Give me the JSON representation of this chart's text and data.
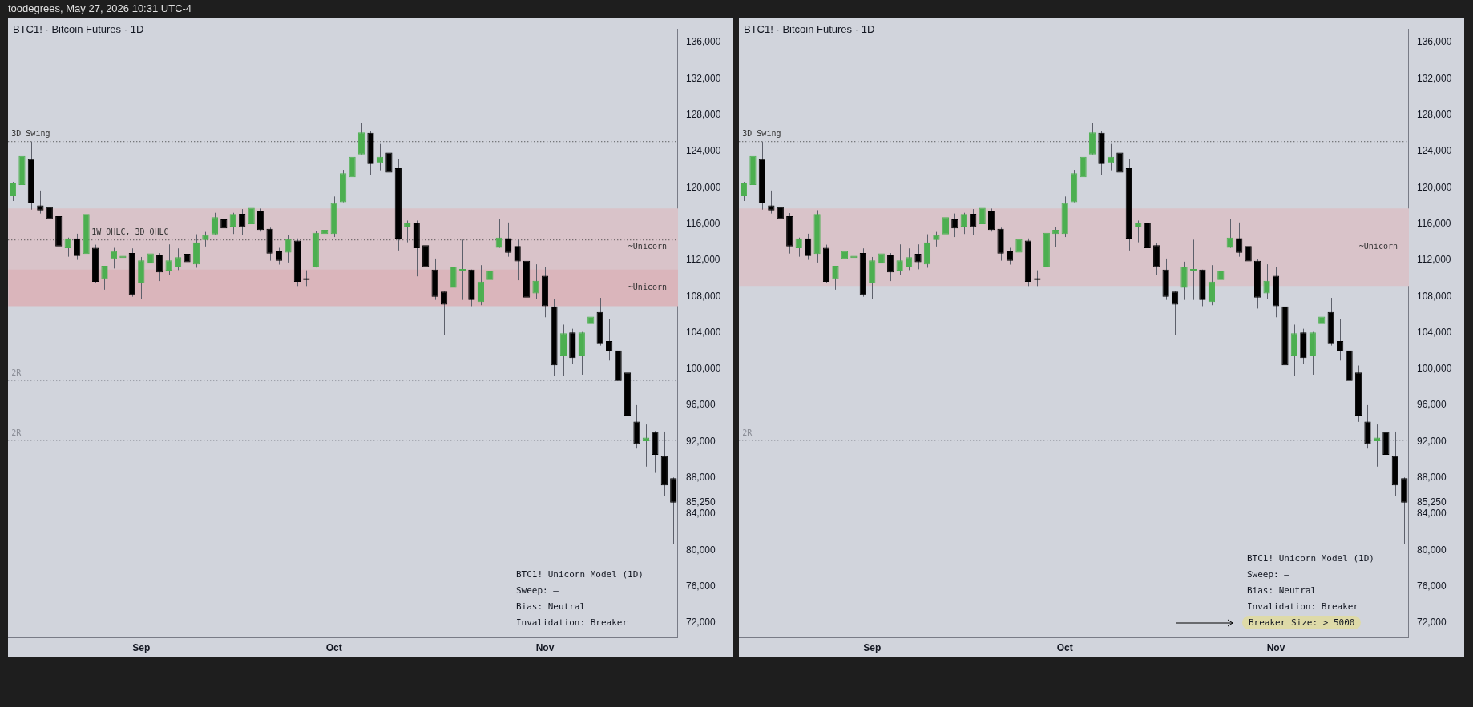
{
  "chart_data": [
    {
      "type": "candlestick",
      "title": "BTC1! · Bitcoin Futures · 1D",
      "subtitle": "toodegrees, May 27, 2026 10:31 UTC-4",
      "categories": [
        null,
        null,
        null,
        null,
        null,
        null,
        null,
        null,
        null,
        null,
        null,
        null,
        null,
        null,
        "Sep",
        null,
        null,
        null,
        null,
        null,
        null,
        null,
        null,
        null,
        null,
        null,
        null,
        null,
        null,
        null,
        null,
        null,
        null,
        null,
        null,
        "Oct",
        null,
        null,
        null,
        null,
        null,
        null,
        null,
        null,
        null,
        null,
        null,
        null,
        null,
        null,
        null,
        null,
        null,
        null,
        null,
        null,
        null,
        null,
        "Nov",
        null,
        null,
        null,
        null,
        null,
        null,
        null,
        null,
        null,
        null,
        null,
        null,
        null,
        null
      ],
      "ohlc": [
        [
          119050,
          120640,
          118530,
          120560
        ],
        [
          120300,
          123680,
          119230,
          123500
        ],
        [
          123160,
          125090,
          117580,
          118270
        ],
        [
          118040,
          119690,
          117150,
          117490
        ],
        [
          117900,
          118220,
          114890,
          116540
        ],
        [
          116860,
          117200,
          112730,
          113510
        ],
        [
          113330,
          114490,
          112380,
          114400
        ],
        [
          114400,
          114920,
          112030,
          112470
        ],
        [
          112670,
          117520,
          111740,
          117090
        ],
        [
          113360,
          113710,
          109520,
          109600
        ],
        [
          109890,
          111370,
          108740,
          111370
        ],
        [
          112150,
          113360,
          111080,
          113010
        ],
        [
          112230,
          114170,
          111600,
          112490
        ],
        [
          112780,
          113300,
          107960,
          108130
        ],
        [
          109430,
          112350,
          107700,
          111970
        ],
        [
          111630,
          113130,
          111080,
          112750
        ],
        [
          112610,
          112780,
          109690,
          110640
        ],
        [
          110850,
          113740,
          110380,
          111970
        ],
        [
          111190,
          113300,
          110900,
          112320
        ],
        [
          112700,
          113740,
          110990,
          111770
        ],
        [
          111540,
          114860,
          111160,
          113970
        ],
        [
          114230,
          115120,
          113510,
          114750
        ],
        [
          114840,
          117230,
          114840,
          116740
        ],
        [
          116510,
          117150,
          114550,
          115500
        ],
        [
          115700,
          117230,
          114890,
          117090
        ],
        [
          117120,
          117640,
          114810,
          115670
        ],
        [
          115960,
          118220,
          115960,
          117780
        ],
        [
          117460,
          117700,
          115150,
          115330
        ],
        [
          115470,
          115590,
          111940,
          112730
        ],
        [
          112960,
          113360,
          111510,
          111940
        ],
        [
          112840,
          114780,
          111740,
          114310
        ],
        [
          114170,
          114400,
          109140,
          109600
        ],
        [
          110010,
          110880,
          109140,
          109810
        ],
        [
          111190,
          115210,
          111190,
          115010
        ],
        [
          114890,
          115620,
          113420,
          115360
        ],
        [
          114890,
          119030,
          114550,
          118300
        ],
        [
          118390,
          121970,
          118390,
          121600
        ],
        [
          121160,
          124920,
          120360,
          123420
        ],
        [
          123680,
          127180,
          123680,
          126110
        ],
        [
          126050,
          126220,
          121400,
          122610
        ],
        [
          122720,
          124830,
          121920,
          123420
        ],
        [
          123880,
          124430,
          121140,
          121660
        ],
        [
          122150,
          123190,
          113070,
          114370
        ],
        [
          115620,
          116370,
          113970,
          116140
        ],
        [
          116140,
          116370,
          110210,
          113330
        ],
        [
          113650,
          113880,
          110380,
          111250
        ],
        [
          110960,
          112180,
          107610,
          107960
        ],
        [
          108530,
          108530,
          103710,
          107090
        ],
        [
          108940,
          111830,
          107610,
          111280
        ],
        [
          110760,
          114260,
          107610,
          111020
        ],
        [
          110960,
          110960,
          106920,
          107610
        ],
        [
          107380,
          111450,
          107030,
          109630
        ],
        [
          109810,
          112260,
          109810,
          110850
        ],
        [
          113360,
          116510,
          113360,
          114490
        ],
        [
          114430,
          116160,
          112380,
          112810
        ],
        [
          113560,
          114260,
          109780,
          111860
        ],
        [
          111920,
          112090,
          106660,
          107870
        ],
        [
          108330,
          111540,
          107700,
          109720
        ],
        [
          110270,
          111220,
          105700,
          106920
        ],
        [
          106890,
          107670,
          99200,
          100410
        ],
        [
          101480,
          104890,
          99200,
          103940
        ],
        [
          104030,
          104430,
          100530,
          101190
        ],
        [
          101480,
          104080,
          99370,
          104030
        ],
        [
          104950,
          106970,
          104520,
          105760
        ],
        [
          106280,
          107840,
          102580,
          102750
        ],
        [
          103070,
          105500,
          100930,
          101920
        ],
        [
          102030,
          104170,
          97810,
          98680
        ],
        [
          99600,
          100380,
          94170,
          94860
        ],
        [
          94200,
          96020,
          91220,
          91740
        ],
        [
          92030,
          93880,
          89230,
          92440
        ],
        [
          93070,
          93160,
          88540,
          90530
        ],
        [
          90390,
          93100,
          86020,
          87150
        ],
        [
          87960,
          88040,
          80650,
          85250
        ]
      ],
      "colors": [
        "#4caf50",
        "#4caf50",
        "#000000",
        "#000000",
        "#000000",
        "#000000",
        "#4caf50",
        "#000000",
        "#4caf50",
        "#000000",
        "#4caf50",
        "#4caf50",
        "#4caf50",
        "#000000",
        "#4caf50",
        "#4caf50",
        "#000000",
        "#4caf50",
        "#4caf50",
        "#000000",
        "#4caf50",
        "#4caf50",
        "#4caf50",
        "#000000",
        "#4caf50",
        "#000000",
        "#4caf50",
        "#000000",
        "#000000",
        "#000000",
        "#4caf50",
        "#000000",
        "#000000",
        "#4caf50",
        "#4caf50",
        "#4caf50",
        "#4caf50",
        "#4caf50",
        "#4caf50",
        "#000000",
        "#4caf50",
        "#000000",
        "#000000",
        "#4caf50",
        "#000000",
        "#000000",
        "#000000",
        "#000000",
        "#4caf50",
        "#4caf50",
        "#000000",
        "#4caf50",
        "#4caf50",
        "#4caf50",
        "#000000",
        "#000000",
        "#000000",
        "#4caf50",
        "#000000",
        "#000000",
        "#4caf50",
        "#000000",
        "#4caf50",
        "#4caf50",
        "#000000",
        "#000000",
        "#000000",
        "#000000",
        "#000000",
        "#4caf50",
        "#000000",
        "#000000",
        "#000000"
      ],
      "ylim": [
        70400,
        137500
      ],
      "yticks": [
        {
          "value": 72000,
          "label": "72,000"
        },
        {
          "value": 76000,
          "label": "76,000"
        },
        {
          "value": 80000,
          "label": "80,000"
        },
        {
          "value": 84000,
          "label": "84,000"
        },
        {
          "value": 85250,
          "label": "85,250"
        },
        {
          "value": 88000,
          "label": "88,000"
        },
        {
          "value": 92000,
          "label": "92,000"
        },
        {
          "value": 96000,
          "label": "96,000"
        },
        {
          "value": 100000,
          "label": "100,000"
        },
        {
          "value": 104000,
          "label": "104,000"
        },
        {
          "value": 108000,
          "label": "108,000"
        },
        {
          "value": 112000,
          "label": "112,000"
        },
        {
          "value": 116000,
          "label": "116,000"
        },
        {
          "value": 120000,
          "label": "120,000"
        },
        {
          "value": 124000,
          "label": "124,000"
        },
        {
          "value": 128000,
          "label": "128,000"
        },
        {
          "value": 132000,
          "label": "132,000"
        },
        {
          "value": 136000,
          "label": "136,000"
        }
      ],
      "bands": [
        {
          "axis": "y",
          "from": 109140,
          "to": 117720,
          "label": "~Unicorn",
          "color": "#d9c3c9"
        },
        {
          "axis": "y",
          "from": 106920,
          "to": 110960,
          "label": "~Unicorn",
          "color": "#dab5bb"
        }
      ],
      "ref_lines": [
        {
          "axis": "y",
          "value": 125090,
          "label": "3D Swing",
          "color": "#333333",
          "line_style": "dotted"
        },
        {
          "axis": "y",
          "value": 114230,
          "label": "1W OHLC, 3D OHLC",
          "color": "#333333",
          "line_style": "dotted"
        },
        {
          "axis": "y",
          "value": 98700,
          "label": "2R",
          "color": "#8a8d96",
          "line_style": "dotted"
        },
        {
          "axis": "y",
          "value": 92100,
          "label": "2R",
          "color": "#8a8d96",
          "line_style": "dotted"
        }
      ],
      "annotations": [
        "BTC1! Unicorn Model (1D)",
        "Sweep: –",
        "Bias: Neutral",
        "Invalidation: Breaker"
      ]
    },
    {
      "type": "candlestick",
      "title": "BTC1! · Bitcoin Futures · 1D",
      "categories": [
        null,
        null,
        null,
        null,
        null,
        null,
        null,
        null,
        null,
        null,
        null,
        null,
        null,
        null,
        "Sep",
        null,
        null,
        null,
        null,
        null,
        null,
        null,
        null,
        null,
        null,
        null,
        null,
        null,
        null,
        null,
        null,
        null,
        null,
        null,
        null,
        "Oct",
        null,
        null,
        null,
        null,
        null,
        null,
        null,
        null,
        null,
        null,
        null,
        null,
        null,
        null,
        null,
        null,
        null,
        null,
        null,
        null,
        null,
        null,
        "Nov",
        null,
        null,
        null,
        null,
        null,
        null,
        null,
        null,
        null,
        null,
        null,
        null,
        null,
        null
      ],
      "ohlc": [
        [
          119050,
          120640,
          118530,
          120560
        ],
        [
          120300,
          123680,
          119230,
          123500
        ],
        [
          123160,
          125090,
          117580,
          118270
        ],
        [
          118040,
          119690,
          117150,
          117490
        ],
        [
          117900,
          118220,
          114890,
          116540
        ],
        [
          116860,
          117200,
          112730,
          113510
        ],
        [
          113330,
          114490,
          112380,
          114400
        ],
        [
          114400,
          114920,
          112030,
          112470
        ],
        [
          112670,
          117520,
          111740,
          117090
        ],
        [
          113360,
          113710,
          109520,
          109600
        ],
        [
          109890,
          111370,
          108740,
          111370
        ],
        [
          112150,
          113360,
          111080,
          113010
        ],
        [
          112230,
          114170,
          111600,
          112490
        ],
        [
          112780,
          113300,
          107960,
          108130
        ],
        [
          109430,
          112350,
          107700,
          111970
        ],
        [
          111630,
          113130,
          111080,
          112750
        ],
        [
          112610,
          112780,
          109690,
          110640
        ],
        [
          110850,
          113740,
          110380,
          111970
        ],
        [
          111190,
          113300,
          110900,
          112320
        ],
        [
          112700,
          113740,
          110990,
          111770
        ],
        [
          111540,
          114860,
          111160,
          113970
        ],
        [
          114230,
          115120,
          113510,
          114750
        ],
        [
          114840,
          117230,
          114840,
          116740
        ],
        [
          116510,
          117150,
          114550,
          115500
        ],
        [
          115700,
          117230,
          114890,
          117090
        ],
        [
          117120,
          117640,
          114810,
          115670
        ],
        [
          115960,
          118220,
          115960,
          117780
        ],
        [
          117460,
          117700,
          115150,
          115330
        ],
        [
          115470,
          115590,
          111940,
          112730
        ],
        [
          112960,
          113360,
          111510,
          111940
        ],
        [
          112840,
          114780,
          111740,
          114310
        ],
        [
          114170,
          114400,
          109140,
          109600
        ],
        [
          110010,
          110880,
          109140,
          109810
        ],
        [
          111190,
          115210,
          111190,
          115010
        ],
        [
          114890,
          115620,
          113420,
          115360
        ],
        [
          114890,
          119030,
          114550,
          118300
        ],
        [
          118390,
          121970,
          118390,
          121600
        ],
        [
          121160,
          124920,
          120360,
          123420
        ],
        [
          123680,
          127180,
          123680,
          126110
        ],
        [
          126050,
          126220,
          121400,
          122610
        ],
        [
          122720,
          124830,
          121920,
          123420
        ],
        [
          123880,
          124430,
          121140,
          121660
        ],
        [
          122150,
          123190,
          113070,
          114370
        ],
        [
          115620,
          116370,
          113970,
          116140
        ],
        [
          116140,
          116370,
          110210,
          113330
        ],
        [
          113650,
          113880,
          110380,
          111250
        ],
        [
          110960,
          112180,
          107610,
          107960
        ],
        [
          108530,
          108530,
          103710,
          107090
        ],
        [
          108940,
          111830,
          107610,
          111280
        ],
        [
          110760,
          114260,
          107610,
          111020
        ],
        [
          110960,
          110960,
          106920,
          107610
        ],
        [
          107380,
          111450,
          107030,
          109630
        ],
        [
          109810,
          112260,
          109810,
          110850
        ],
        [
          113360,
          116510,
          113360,
          114490
        ],
        [
          114430,
          116160,
          112380,
          112810
        ],
        [
          113560,
          114260,
          109780,
          111860
        ],
        [
          111920,
          112090,
          106660,
          107870
        ],
        [
          108330,
          111540,
          107700,
          109720
        ],
        [
          110270,
          111220,
          105700,
          106920
        ],
        [
          106890,
          107670,
          99200,
          100410
        ],
        [
          101480,
          104890,
          99200,
          103940
        ],
        [
          104030,
          104430,
          100530,
          101190
        ],
        [
          101480,
          104080,
          99370,
          104030
        ],
        [
          104950,
          106970,
          104520,
          105760
        ],
        [
          106280,
          107840,
          102580,
          102750
        ],
        [
          103070,
          105500,
          100930,
          101920
        ],
        [
          102030,
          104170,
          97810,
          98680
        ],
        [
          99600,
          100380,
          94170,
          94860
        ],
        [
          94200,
          96020,
          91220,
          91740
        ],
        [
          92030,
          93880,
          89230,
          92440
        ],
        [
          93070,
          93160,
          88540,
          90530
        ],
        [
          90390,
          93100,
          86020,
          87150
        ],
        [
          87960,
          88040,
          80650,
          85250
        ]
      ],
      "colors": [
        "#4caf50",
        "#4caf50",
        "#000000",
        "#000000",
        "#000000",
        "#000000",
        "#4caf50",
        "#000000",
        "#4caf50",
        "#000000",
        "#4caf50",
        "#4caf50",
        "#4caf50",
        "#000000",
        "#4caf50",
        "#4caf50",
        "#000000",
        "#4caf50",
        "#4caf50",
        "#000000",
        "#4caf50",
        "#4caf50",
        "#4caf50",
        "#000000",
        "#4caf50",
        "#000000",
        "#4caf50",
        "#000000",
        "#000000",
        "#000000",
        "#4caf50",
        "#000000",
        "#000000",
        "#4caf50",
        "#4caf50",
        "#4caf50",
        "#4caf50",
        "#4caf50",
        "#4caf50",
        "#000000",
        "#4caf50",
        "#000000",
        "#000000",
        "#4caf50",
        "#000000",
        "#000000",
        "#000000",
        "#000000",
        "#4caf50",
        "#4caf50",
        "#000000",
        "#4caf50",
        "#4caf50",
        "#4caf50",
        "#000000",
        "#000000",
        "#000000",
        "#4caf50",
        "#000000",
        "#000000",
        "#4caf50",
        "#000000",
        "#4caf50",
        "#4caf50",
        "#000000",
        "#000000",
        "#000000",
        "#000000",
        "#000000",
        "#4caf50",
        "#000000",
        "#000000",
        "#000000"
      ],
      "ylim": [
        70400,
        137500
      ],
      "yticks": [
        {
          "value": 72000,
          "label": "72,000"
        },
        {
          "value": 76000,
          "label": "76,000"
        },
        {
          "value": 80000,
          "label": "80,000"
        },
        {
          "value": 84000,
          "label": "84,000"
        },
        {
          "value": 85250,
          "label": "85,250"
        },
        {
          "value": 88000,
          "label": "88,000"
        },
        {
          "value": 92000,
          "label": "92,000"
        },
        {
          "value": 96000,
          "label": "96,000"
        },
        {
          "value": 100000,
          "label": "100,000"
        },
        {
          "value": 104000,
          "label": "104,000"
        },
        {
          "value": 108000,
          "label": "108,000"
        },
        {
          "value": 112000,
          "label": "112,000"
        },
        {
          "value": 116000,
          "label": "116,000"
        },
        {
          "value": 120000,
          "label": "120,000"
        },
        {
          "value": 124000,
          "label": "124,000"
        },
        {
          "value": 128000,
          "label": "128,000"
        },
        {
          "value": 132000,
          "label": "132,000"
        },
        {
          "value": 136000,
          "label": "136,000"
        }
      ],
      "bands": [
        {
          "axis": "y",
          "from": 109140,
          "to": 117720,
          "label": "~Unicorn",
          "color": "#d9c3c9"
        }
      ],
      "ref_lines": [
        {
          "axis": "y",
          "value": 125090,
          "label": "3D Swing",
          "color": "#333333",
          "line_style": "dotted"
        },
        {
          "axis": "y",
          "value": 92100,
          "label": "2R",
          "color": "#8a8d96",
          "line_style": "dotted"
        }
      ],
      "annotations": [
        "BTC1! Unicorn Model (1D)",
        "Sweep: –",
        "Bias: Neutral",
        "Invalidation: Breaker",
        "Breaker Size: > 5000"
      ]
    }
  ]
}
